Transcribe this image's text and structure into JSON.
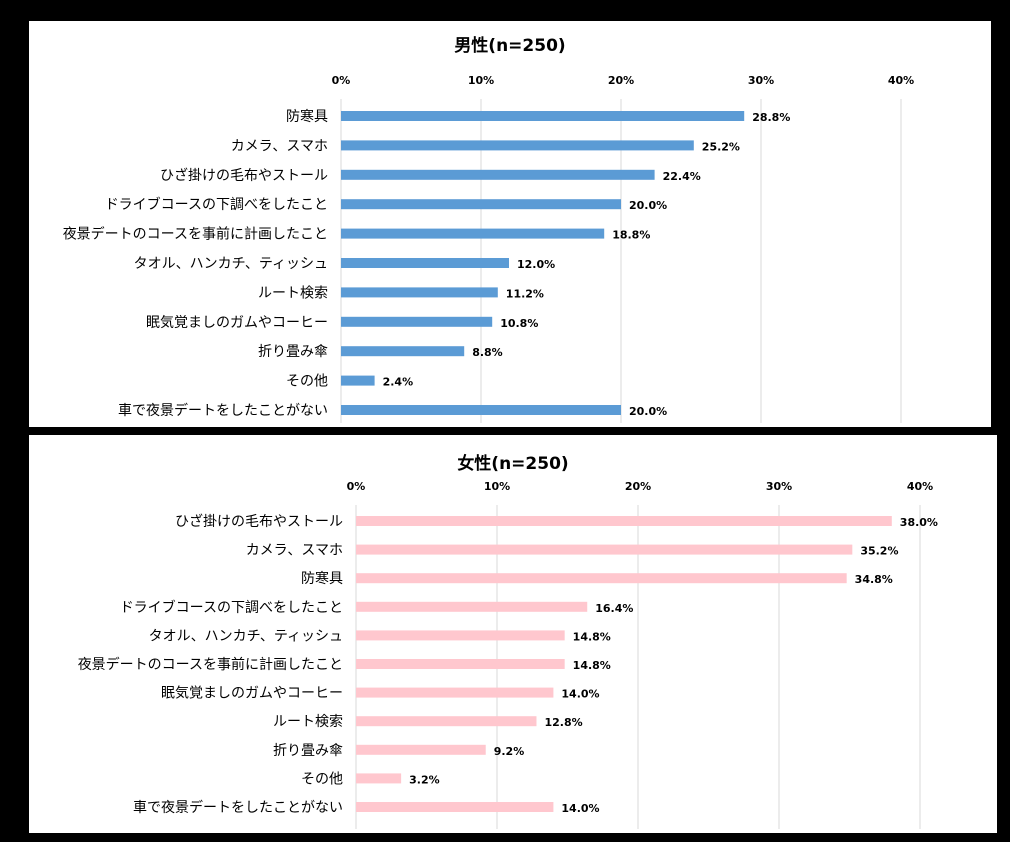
{
  "chart_data": [
    {
      "type": "bar",
      "orientation": "horizontal",
      "title": "男性(n=250)",
      "xlim": [
        0,
        40
      ],
      "x_ticks": [
        "0%",
        "10%",
        "20%",
        "30%",
        "40%"
      ],
      "grid": true,
      "color": "#5b9bd5",
      "categories": [
        "防寒具",
        "カメラ、スマホ",
        "ひざ掛けの毛布やストール",
        "ドライブコースの下調べをしたこと",
        "夜景デートのコースを事前に計画したこと",
        "タオル、ハンカチ、ティッシュ",
        "ルート検索",
        "眠気覚ましのガムやコーヒー",
        "折り畳み傘",
        "その他",
        "車で夜景デートをしたことがない"
      ],
      "values": [
        28.8,
        25.2,
        22.4,
        20.0,
        18.8,
        12.0,
        11.2,
        10.8,
        8.8,
        2.4,
        20.0
      ],
      "value_labels": [
        "28.8%",
        "25.2%",
        "22.4%",
        "20.0%",
        "18.8%",
        "12.0%",
        "11.2%",
        "10.8%",
        "8.8%",
        "2.4%",
        "20.0%"
      ]
    },
    {
      "type": "bar",
      "orientation": "horizontal",
      "title": "女性(n=250)",
      "xlim": [
        0,
        40
      ],
      "x_ticks": [
        "0%",
        "10%",
        "20%",
        "30%",
        "40%"
      ],
      "grid": true,
      "color": "#ffc7ce",
      "categories": [
        "ひざ掛けの毛布やストール",
        "カメラ、スマホ",
        "防寒具",
        "ドライブコースの下調べをしたこと",
        "タオル、ハンカチ、ティッシュ",
        "夜景デートのコースを事前に計画したこと",
        "眠気覚ましのガムやコーヒー",
        "ルート検索",
        "折り畳み傘",
        "その他",
        "車で夜景デートをしたことがない"
      ],
      "values": [
        38.0,
        35.2,
        34.8,
        16.4,
        14.8,
        14.8,
        14.0,
        12.8,
        9.2,
        3.2,
        14.0
      ],
      "value_labels": [
        "38.0%",
        "35.2%",
        "34.8%",
        "16.4%",
        "14.8%",
        "14.8%",
        "14.0%",
        "12.8%",
        "9.2%",
        "3.2%",
        "14.0%"
      ]
    }
  ]
}
